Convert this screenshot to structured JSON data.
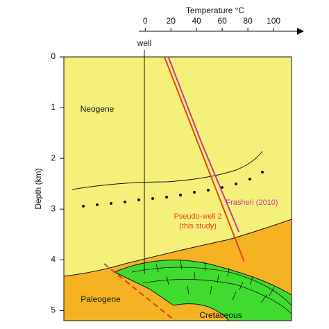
{
  "chart_data": {
    "type": "line",
    "x_label": "Temperature °C",
    "y_label": "Depth (km)",
    "xlim": [
      -5,
      120
    ],
    "xticks": [
      0,
      20,
      40,
      60,
      80,
      100
    ],
    "ylim": [
      0,
      5.2
    ],
    "yticks": [
      0,
      1,
      2,
      3,
      4,
      5
    ],
    "y_inverted": true,
    "series": [
      {
        "name": "Frasheri (2010)",
        "color": "#c2389c",
        "x": [
          18,
          44,
          73
        ],
        "y": [
          0,
          1.7,
          3.45
        ]
      },
      {
        "name": "Pseudo-well 2 (this study)",
        "color": "#e8401f",
        "x": [
          15,
          77
        ],
        "y": [
          0,
          4.03
        ]
      }
    ],
    "annotations": {
      "well": "well",
      "neogene": "Neogene",
      "paleogene": "Paleogene",
      "cretaceous": "Cretaceous"
    }
  }
}
